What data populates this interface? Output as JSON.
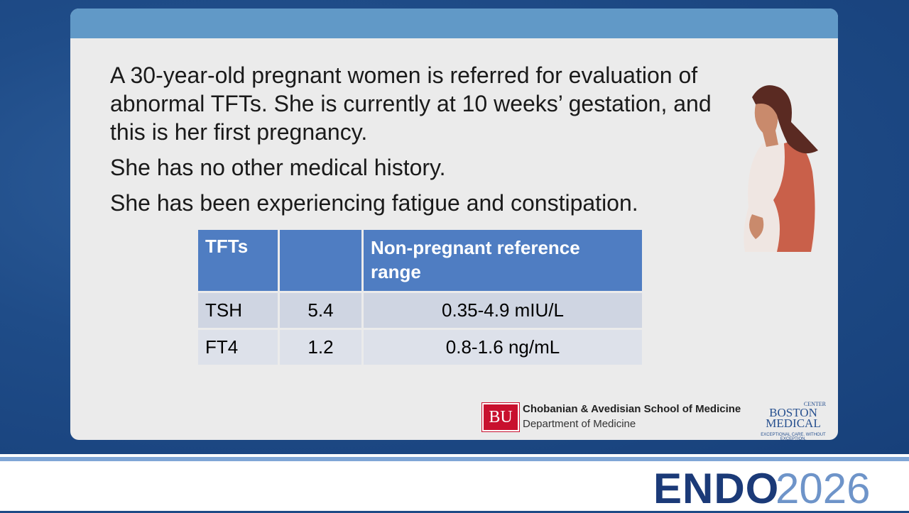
{
  "slide": {
    "paragraphs": [
      "A 30-year-old pregnant women is referred for evaluation of abnormal TFTs. She is currently at 10 weeks’ gestation, and this is her first pregnancy.",
      "She has no other medical history.",
      "She has been experiencing fatigue and constipation."
    ],
    "table": {
      "header": [
        "TFTs",
        "Non-pregnant reference range"
      ],
      "rows": [
        [
          "TSH",
          5.4,
          "0.35-4.9 mIU/L"
        ],
        [
          "FT4",
          1.2,
          "0.8-1.6 ng/mL"
        ]
      ]
    },
    "logos": {
      "bu_mark": "BU",
      "bu_school": "Chobanian & Avedisian School of Medicine",
      "bu_dept": "Department of Medicine",
      "bmc_line1": "BOSTON",
      "bmc_line2": "MEDICAL",
      "bmc_center": "CENTER",
      "bmc_tagline": "EXCEPTIONAL CARE. WITHOUT EXCEPTION."
    }
  },
  "footer": {
    "brand": "ENDO",
    "year": "2026"
  }
}
